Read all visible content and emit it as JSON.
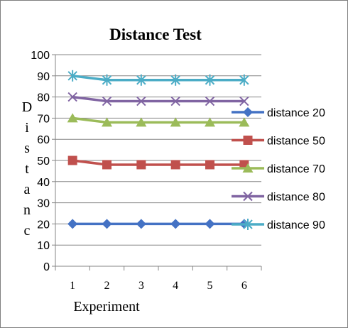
{
  "chart_data": {
    "type": "line",
    "title": "Distance Test",
    "xlabel": "Experiment",
    "ylabel": "Distanc",
    "x": [
      1,
      2,
      3,
      4,
      5,
      6
    ],
    "ylim": [
      0,
      100
    ],
    "yticks": [
      0,
      10,
      20,
      30,
      40,
      50,
      60,
      70,
      80,
      90,
      100
    ],
    "grid": true,
    "legend": "right",
    "series": [
      {
        "name": "distance 20",
        "values": [
          20,
          20,
          20,
          20,
          20,
          20
        ],
        "color": "#4472C4",
        "marker": "diamond"
      },
      {
        "name": "distance 50",
        "values": [
          50,
          48,
          48,
          48,
          48,
          48
        ],
        "color": "#C0504D",
        "marker": "square"
      },
      {
        "name": "distance 70",
        "values": [
          70,
          68,
          68,
          68,
          68,
          68
        ],
        "color": "#9BBB59",
        "marker": "triangle"
      },
      {
        "name": "distance 80",
        "values": [
          80,
          78,
          78,
          78,
          78,
          78
        ],
        "color": "#8064A2",
        "marker": "x"
      },
      {
        "name": "distance 90",
        "values": [
          90,
          88,
          88,
          88,
          88,
          88
        ],
        "color": "#4BACC6",
        "marker": "star"
      }
    ]
  }
}
